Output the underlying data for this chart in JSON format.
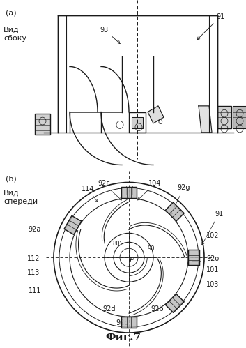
{
  "title": "Фиг.7",
  "label_a": "(a)",
  "label_b": "(b)",
  "view_side_label": "Вид\nсбоку",
  "view_front_label": "Вид\nспереди",
  "bg_color": "#ffffff",
  "line_color": "#1a1a1a"
}
